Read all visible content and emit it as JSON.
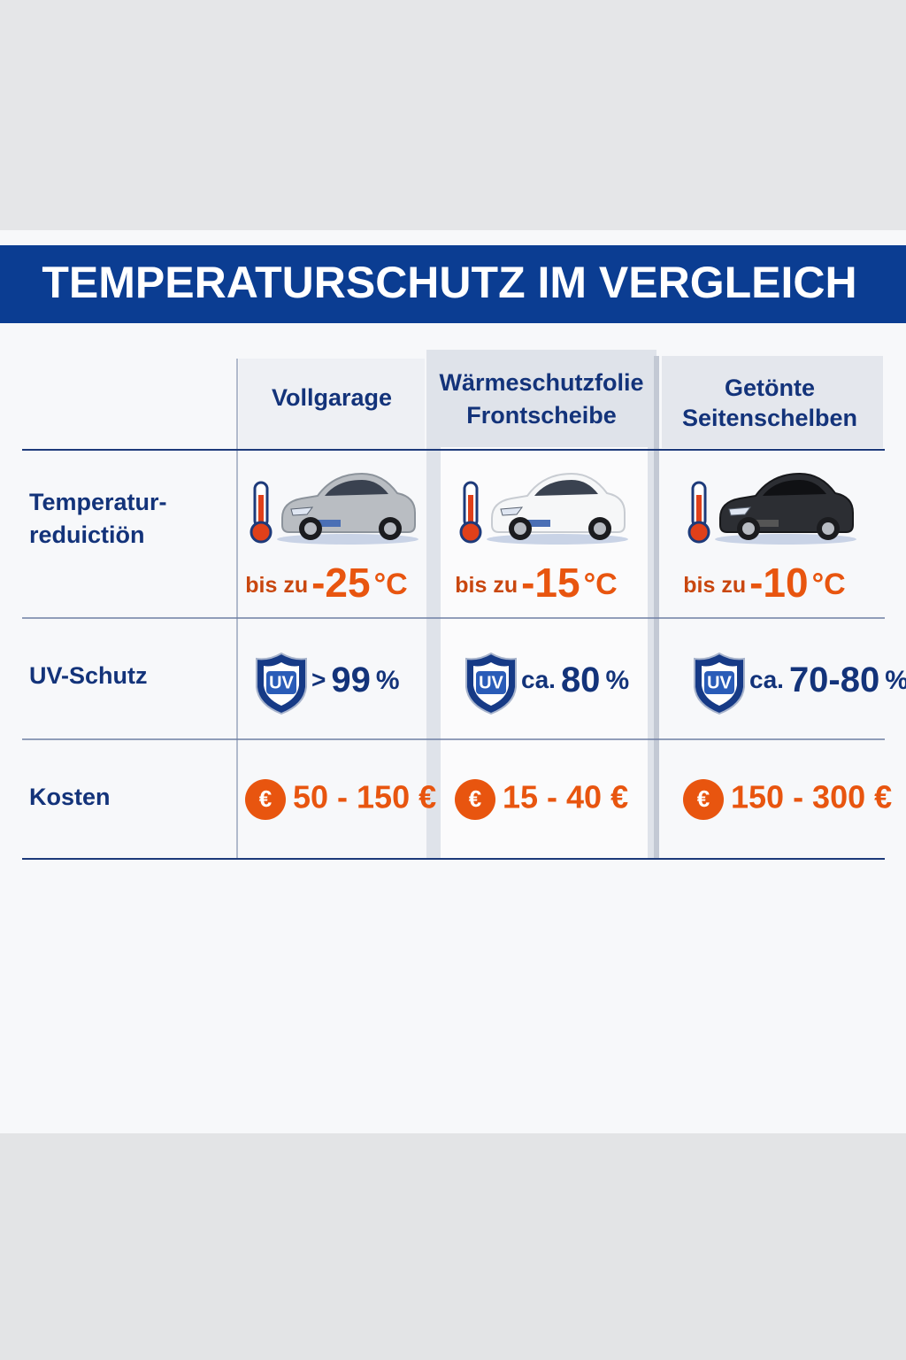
{
  "header": {
    "title": "TEMPERATURSCHUTZ IM VERGLEICH"
  },
  "table": {
    "columns": [
      [
        "Vollgarage"
      ],
      [
        "Wärmeschutzfolie",
        "Frontscheibe"
      ],
      [
        "Getönte",
        "Seitenschelben"
      ]
    ],
    "row_labels": [
      [
        "Temperatur-",
        "reduictiön"
      ],
      [
        "UV-Schutz"
      ],
      [
        "Kosten"
      ]
    ],
    "temperature": [
      {
        "prefix": "bis zu",
        "value": "-25",
        "unit": "°C"
      },
      {
        "prefix": "bis zu",
        "value": "-15",
        "unit": "°C"
      },
      {
        "prefix": "bis zu",
        "value": "-10",
        "unit": "°C"
      }
    ],
    "uv_badge": "UV",
    "uv": [
      {
        "prefix": ">",
        "value": "99",
        "unit": "%"
      },
      {
        "prefix": "ca.",
        "value": "80",
        "unit": "%"
      },
      {
        "prefix": "ca.",
        "value": "70-80",
        "unit": "%"
      }
    ],
    "euro_icon": "€",
    "costs": [
      "50 - 150 €",
      "15 - 40 €",
      "150 - 300 €"
    ]
  }
}
